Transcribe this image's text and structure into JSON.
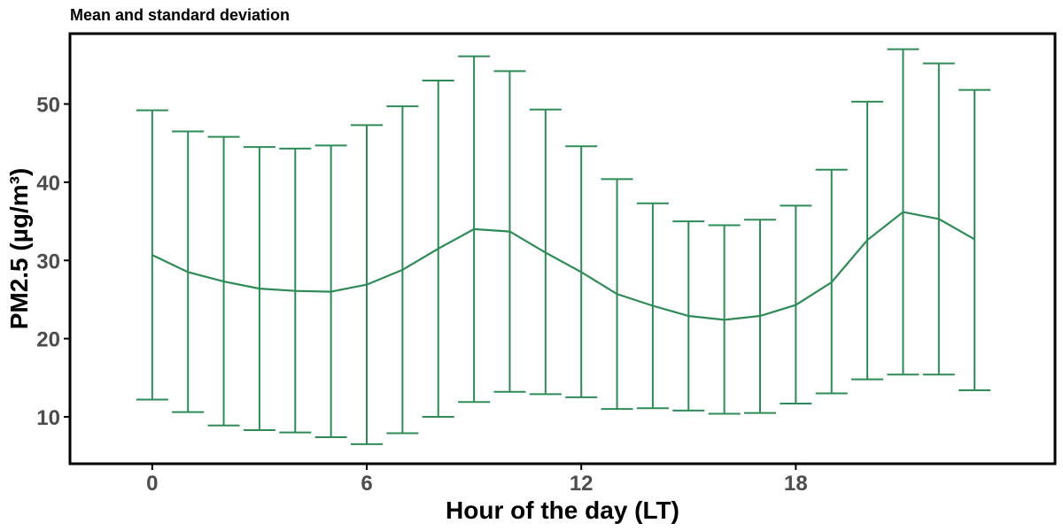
{
  "colors": {
    "series": "#2e8b57",
    "frame": "#000000",
    "tick_text": "#4d4d4d"
  },
  "chart_data": {
    "type": "line",
    "title": "Mean and standard deviation",
    "xlabel": "Hour of the day (LT)",
    "ylabel": "PM2.5 (µg/m³)",
    "xlim": [
      -2.3,
      25.25
    ],
    "ylim": [
      4.0,
      59.0
    ],
    "x_ticks": [
      0,
      6,
      12,
      18
    ],
    "y_ticks": [
      10,
      20,
      30,
      40,
      50
    ],
    "grid": false,
    "legend": "none",
    "x": [
      0,
      1,
      2,
      3,
      4,
      5,
      6,
      7,
      8,
      9,
      10,
      11,
      12,
      13,
      14,
      15,
      16,
      17,
      18,
      19,
      20,
      21,
      22,
      23
    ],
    "series": [
      {
        "values": [
          30.7,
          28.5,
          27.3,
          26.4,
          26.1,
          26.0,
          26.9,
          28.8,
          31.5,
          34.0,
          33.7,
          31.0,
          28.5,
          25.7,
          24.2,
          22.9,
          22.4,
          22.9,
          24.3,
          27.2,
          32.6,
          36.2,
          35.3,
          32.7
        ],
        "upper": [
          49.2,
          46.5,
          45.8,
          44.5,
          44.3,
          44.7,
          47.3,
          49.7,
          53.0,
          56.1,
          54.2,
          49.3,
          44.6,
          40.4,
          37.3,
          35.0,
          34.5,
          35.2,
          37.0,
          41.6,
          50.3,
          57.0,
          55.2,
          51.8
        ],
        "lower": [
          12.2,
          10.6,
          8.9,
          8.3,
          8.0,
          7.4,
          6.5,
          7.9,
          10.0,
          11.9,
          13.2,
          12.9,
          12.5,
          11.0,
          11.1,
          10.8,
          10.4,
          10.5,
          11.7,
          13.0,
          14.8,
          15.4,
          15.4,
          13.4
        ]
      }
    ]
  }
}
